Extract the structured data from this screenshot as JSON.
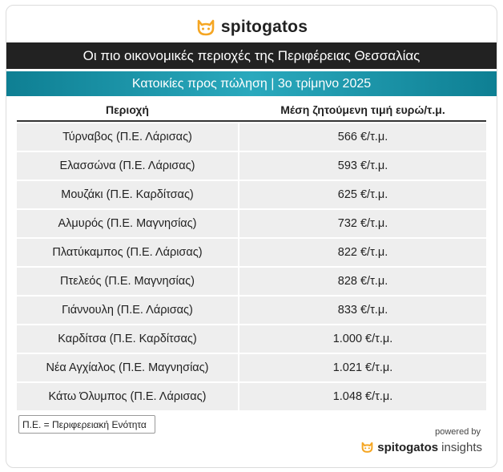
{
  "header": {
    "logo_icon": "cat-face-icon",
    "brand": "spitogatos",
    "accent_color": "#f5a623",
    "title": "Οι πιο οικονομικές περιοχές της Περιφέρειας Θεσσαλίας",
    "subtitle": "Κατοικίες προς πώληση | 3ο τρίμηνο 2025"
  },
  "table": {
    "columns": [
      "Περιοχή",
      "Μέση ζητούμενη τιμή ευρώ/τ.μ."
    ],
    "rows": [
      {
        "area": "Τύρναβος (Π.Ε. Λάρισας)",
        "price": "566 €/τ.μ."
      },
      {
        "area": "Ελασσώνα (Π.Ε. Λάρισας)",
        "price": "593 €/τ.μ."
      },
      {
        "area": "Μουζάκι (Π.Ε. Καρδίτσας)",
        "price": "625 €/τ.μ."
      },
      {
        "area": "Αλμυρός (Π.Ε. Μαγνησίας)",
        "price": "732 €/τ.μ."
      },
      {
        "area": "Πλατύκαμπος (Π.Ε. Λάρισας)",
        "price": "822 €/τ.μ."
      },
      {
        "area": "Πτελεός (Π.Ε. Μαγνησίας)",
        "price": "828 €/τ.μ."
      },
      {
        "area": "Γιάννουλη (Π.Ε. Λάρισας)",
        "price": "833 €/τ.μ."
      },
      {
        "area": "Καρδίτσα (Π.Ε. Καρδίτσας)",
        "price": "1.000 €/τ.μ."
      },
      {
        "area": "Νέα Αγχίαλος (Π.Ε. Μαγνησίας)",
        "price": "1.021 €/τ.μ."
      },
      {
        "area": "Κάτω Όλυμπος (Π.Ε. Λάρισας)",
        "price": "1.048 €/τ.μ."
      }
    ]
  },
  "footer": {
    "note": "Π.Ε. = Περιφερειακή Ενότητα",
    "powered_by": "powered by",
    "brand_bold": "spitogatos",
    "brand_light": "insights"
  }
}
